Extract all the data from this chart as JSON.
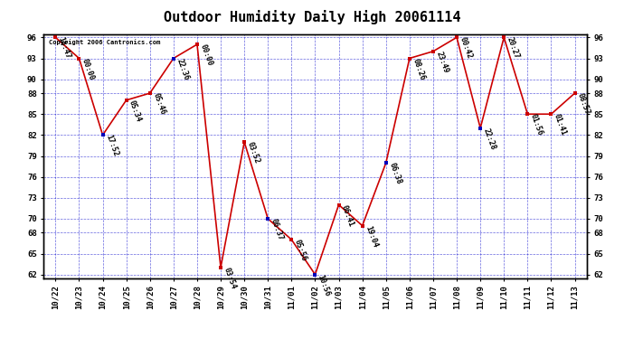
{
  "title": "Outdoor Humidity Daily High 20061114",
  "copyright": "Copyright 2006 Cantronics.com",
  "background_color": "#ffffff",
  "plot_bg_color": "#ffffff",
  "grid_color": "#0000cc",
  "line_color": "#cc0000",
  "point_color_red": "#cc0000",
  "point_color_blue": "#0000bb",
  "x_labels": [
    "10/22",
    "10/23",
    "10/24",
    "10/25",
    "10/26",
    "10/27",
    "10/28",
    "10/29",
    "10/30",
    "10/31",
    "11/01",
    "11/02",
    "11/03",
    "11/04",
    "11/05",
    "11/06",
    "11/07",
    "11/08",
    "11/09",
    "11/10",
    "11/11",
    "11/12",
    "11/13"
  ],
  "y_values": [
    96,
    93,
    82,
    87,
    88,
    93,
    95,
    63,
    81,
    70,
    67,
    62,
    72,
    69,
    78,
    93,
    94,
    96,
    83,
    96,
    85,
    85,
    88
  ],
  "blue_indices": [
    2,
    5,
    9,
    11,
    14,
    18
  ],
  "point_labels": [
    "18:47",
    "00:00",
    "17:52",
    "05:34",
    "05:46",
    "22:36",
    "00:00",
    "03:54",
    "03:52",
    "06:37",
    "05:56",
    "10:56",
    "06:41",
    "19:04",
    "06:38",
    "08:26",
    "23:49",
    "00:42",
    "22:28",
    "20:27",
    "01:56",
    "01:41",
    "08:57"
  ],
  "ylim_min": 62,
  "ylim_max": 96,
  "yticks": [
    62,
    65,
    68,
    70,
    73,
    76,
    79,
    82,
    85,
    88,
    90,
    93,
    96
  ],
  "title_fontsize": 11,
  "label_fontsize": 6,
  "tick_fontsize": 6.5,
  "copyright_fontsize": 5
}
